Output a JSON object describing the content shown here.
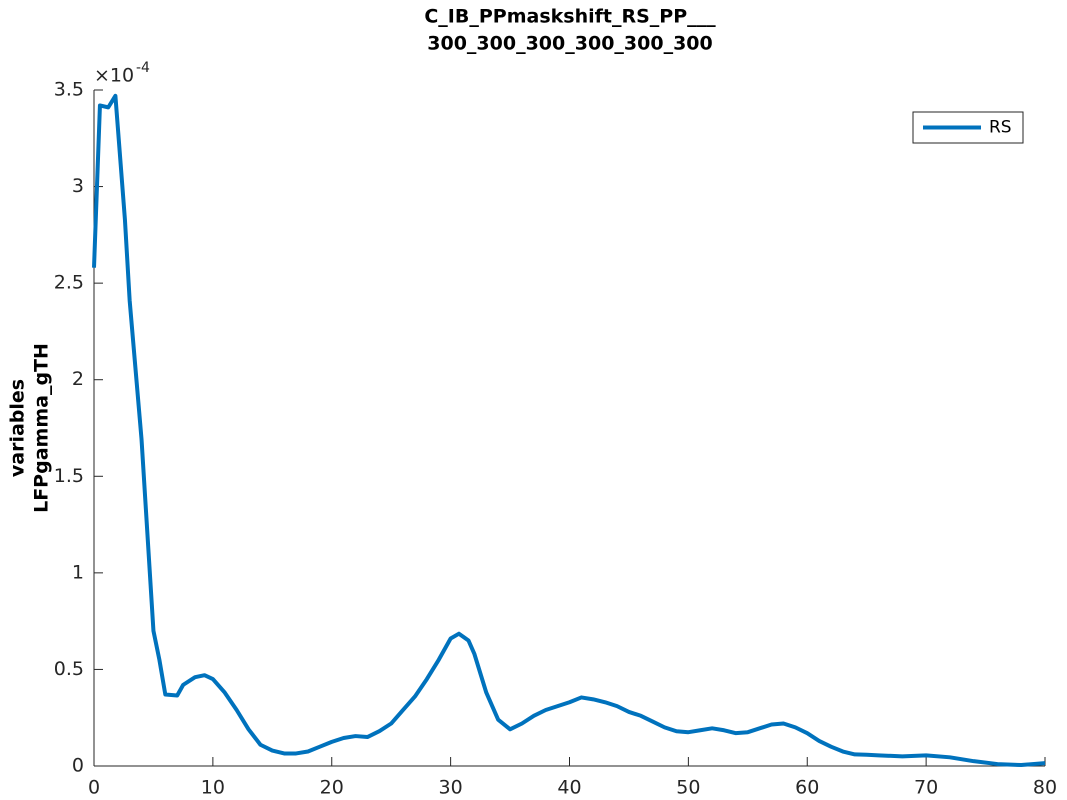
{
  "chart_data": {
    "type": "line",
    "title": [
      "C_IB_PPmaskshift_RS_PP___",
      "300_300_300_300_300_300"
    ],
    "y_label": [
      "variables",
      "LFPgamma_gTH"
    ],
    "y_exponent": {
      "base": "×10",
      "power": "-4"
    },
    "x": [
      0,
      0.5,
      1.2,
      1.8,
      2.6,
      3,
      4,
      5,
      5.5,
      6,
      7,
      7.5,
      8.5,
      9.3,
      10,
      11,
      12,
      13,
      14,
      15,
      16,
      17,
      18,
      19,
      20,
      21,
      22,
      23,
      24,
      25,
      26,
      27,
      28,
      29,
      30,
      30.7,
      31.5,
      32,
      33,
      34,
      35,
      36,
      37,
      38,
      39,
      40,
      41,
      42,
      43,
      44,
      45,
      46,
      47,
      48,
      49,
      50,
      51,
      52,
      53,
      54,
      55,
      56,
      57,
      58,
      59,
      60,
      61,
      62,
      63,
      64,
      65,
      66,
      68,
      70,
      72,
      74,
      76,
      78,
      80
    ],
    "series": [
      {
        "name": "RS",
        "color": "#0072bd",
        "values": [
          2.58,
          3.42,
          3.41,
          3.47,
          2.83,
          2.41,
          1.69,
          0.7,
          0.55,
          0.37,
          0.365,
          0.42,
          0.46,
          0.47,
          0.45,
          0.38,
          0.29,
          0.19,
          0.11,
          0.08,
          0.065,
          0.065,
          0.075,
          0.1,
          0.125,
          0.145,
          0.155,
          0.15,
          0.18,
          0.22,
          0.29,
          0.36,
          0.45,
          0.55,
          0.66,
          0.685,
          0.65,
          0.58,
          0.38,
          0.24,
          0.19,
          0.22,
          0.26,
          0.29,
          0.31,
          0.33,
          0.355,
          0.345,
          0.33,
          0.31,
          0.28,
          0.26,
          0.23,
          0.2,
          0.18,
          0.175,
          0.185,
          0.195,
          0.185,
          0.17,
          0.175,
          0.195,
          0.215,
          0.22,
          0.2,
          0.17,
          0.13,
          0.1,
          0.075,
          0.06,
          0.058,
          0.055,
          0.05,
          0.055,
          0.045,
          0.025,
          0.01,
          0.005,
          0.015
        ]
      }
    ],
    "xlim": [
      0,
      80
    ],
    "xticks": [
      0,
      10,
      20,
      30,
      40,
      50,
      60,
      70,
      80
    ],
    "ylim": [
      0,
      3.5
    ],
    "yticks": [
      0,
      0.5,
      1,
      1.5,
      2,
      2.5,
      3,
      3.5
    ],
    "legend": "top-right"
  }
}
